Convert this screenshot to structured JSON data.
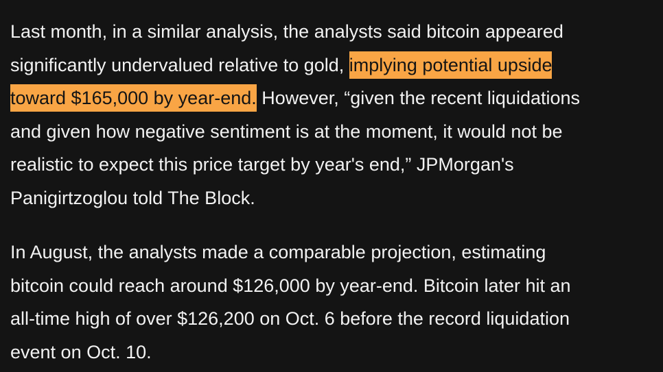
{
  "paragraphs": [
    {
      "lines": [
        [
          {
            "text": "Last month, in a similar analysis, the analysts said bitcoin appeared"
          }
        ],
        [
          {
            "text": "significantly undervalued relative to gold, "
          },
          {
            "text": "implying potential upside",
            "highlight": true
          }
        ],
        [
          {
            "text": "toward $165,000 by year-end.",
            "highlight": true
          },
          {
            "text": " However, “given the recent liquidations"
          }
        ],
        [
          {
            "text": "and given how negative sentiment is at the moment, it would not be"
          }
        ],
        [
          {
            "text": "realistic to expect this price target by year's end,” JPMorgan's"
          }
        ],
        [
          {
            "text": "Panigirtzoglou told The Block."
          }
        ]
      ]
    },
    {
      "lines": [
        [
          {
            "text": "In August, the analysts made a comparable projection, estimating"
          }
        ],
        [
          {
            "text": "bitcoin could reach around $126,000 by year-end. Bitcoin later hit an"
          }
        ],
        [
          {
            "text": "all-time high of over $126,200 on Oct. 6 before the record liquidation"
          }
        ],
        [
          {
            "text": "event on Oct. 10."
          }
        ]
      ]
    }
  ]
}
